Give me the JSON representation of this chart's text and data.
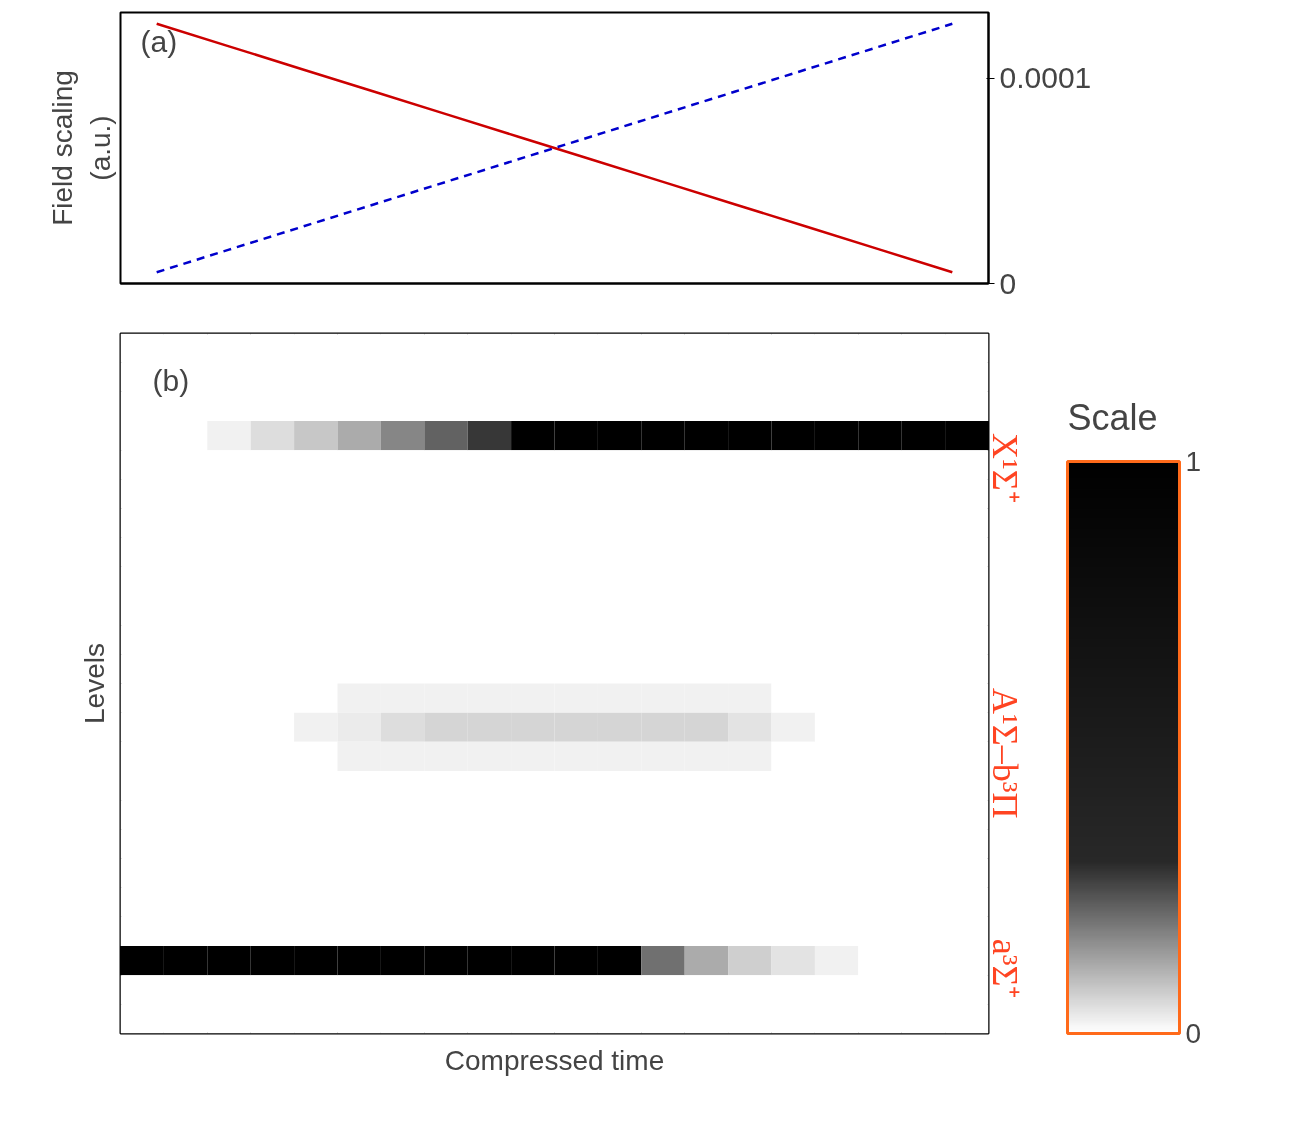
{
  "chart_data": [
    {
      "type": "line",
      "categories": [
        null,
        null,
        null,
        null,
        null,
        null,
        null,
        null,
        null,
        null,
        null,
        null
      ],
      "ylim": [
        0,
        0.000132
      ],
      "yticks": [
        0,
        0.0001
      ],
      "ylabel": "Field scaling\n(a.u.)",
      "tick_labels": "y",
      "annotations": [
        "(a)"
      ],
      "series": [
        {
          "color": "#cc0000",
          "values": [
            0.0001265,
            0.0001155,
            0.0001045,
            9.35e-05,
            8.25e-05,
            7.15e-05,
            6.05e-05,
            4.95e-05,
            3.85e-05,
            2.75e-05,
            1.65e-05,
            5.5e-06
          ],
          "line_style": "solid"
        },
        {
          "color": "#0000cc",
          "values": [
            5.5e-06,
            1.65e-05,
            2.75e-05,
            3.85e-05,
            4.95e-05,
            6.05e-05,
            7.15e-05,
            8.25e-05,
            9.35e-05,
            0.0001045,
            0.0001155,
            0.0001265
          ],
          "line_style": "dashed"
        }
      ]
    },
    {
      "type": "heatmap",
      "xlabel": "Compressed time",
      "ylabel": "Levels",
      "tick_labels": false,
      "clabel": "Scale",
      "clim": [
        0,
        1
      ],
      "cticks": [
        0,
        1
      ],
      "categories": [
        null,
        null,
        null,
        null,
        null,
        null,
        null,
        null,
        null,
        null,
        null,
        null,
        null,
        null,
        null,
        null,
        null,
        null,
        null,
        null
      ],
      "y_categories": [
        null,
        null,
        null,
        null,
        null,
        null,
        null,
        null,
        null,
        null,
        null,
        null,
        null,
        null,
        null,
        null,
        null,
        null,
        null,
        null,
        null,
        null,
        null,
        null
      ],
      "annotations": [
        "(b)",
        "X¹Σ⁺",
        "A¹Σ–b³Π",
        "a³Σ⁺"
      ],
      "cells": [
        [
          0,
          0,
          0,
          0,
          0,
          0,
          0,
          0,
          0,
          0,
          0,
          0,
          0,
          0,
          0,
          0,
          0,
          0,
          0,
          0
        ],
        [
          0,
          0,
          0,
          0,
          0,
          0,
          0,
          0,
          0,
          0,
          0,
          0,
          0,
          0,
          0,
          0,
          0,
          0,
          0,
          0
        ],
        [
          0,
          0,
          0,
          0,
          0,
          0,
          0,
          0,
          0,
          0,
          0,
          0,
          0,
          0,
          0,
          0,
          0,
          0,
          0,
          0
        ],
        [
          0,
          0,
          0.02,
          0.05,
          0.08,
          0.12,
          0.17,
          0.22,
          0.28,
          1,
          1,
          1,
          1,
          1,
          1,
          1,
          1,
          1,
          1,
          1
        ],
        [
          0,
          0,
          0,
          0,
          0,
          0,
          0,
          0,
          0,
          0,
          0,
          0,
          0,
          0,
          0,
          0,
          0,
          0,
          0,
          0
        ],
        [
          0,
          0,
          0,
          0,
          0,
          0,
          0,
          0,
          0,
          0,
          0,
          0,
          0,
          0,
          0,
          0,
          0,
          0,
          0,
          0
        ],
        [
          0,
          0,
          0,
          0,
          0,
          0,
          0,
          0,
          0,
          0,
          0,
          0,
          0,
          0,
          0,
          0,
          0,
          0,
          0,
          0
        ],
        [
          0,
          0,
          0,
          0,
          0,
          0,
          0,
          0,
          0,
          0,
          0,
          0,
          0,
          0,
          0,
          0,
          0,
          0,
          0,
          0
        ],
        [
          0,
          0,
          0,
          0,
          0,
          0,
          0,
          0,
          0,
          0,
          0,
          0,
          0,
          0,
          0,
          0,
          0,
          0,
          0,
          0
        ],
        [
          0,
          0,
          0,
          0,
          0,
          0,
          0,
          0,
          0,
          0,
          0,
          0,
          0,
          0,
          0,
          0,
          0,
          0,
          0,
          0
        ],
        [
          0,
          0,
          0,
          0,
          0,
          0,
          0,
          0,
          0,
          0,
          0,
          0,
          0,
          0,
          0,
          0,
          0,
          0,
          0,
          0
        ],
        [
          0,
          0,
          0,
          0,
          0,
          0,
          0,
          0,
          0,
          0,
          0,
          0,
          0,
          0,
          0,
          0,
          0,
          0,
          0,
          0
        ],
        [
          0,
          0,
          0,
          0,
          0,
          0.02,
          0.02,
          0.02,
          0.02,
          0.02,
          0.02,
          0.02,
          0.02,
          0.02,
          0.02,
          0,
          0,
          0,
          0,
          0
        ],
        [
          0,
          0,
          0,
          0,
          0.02,
          0.03,
          0.05,
          0.06,
          0.06,
          0.06,
          0.06,
          0.06,
          0.06,
          0.06,
          0.04,
          0.02,
          0,
          0,
          0,
          0
        ],
        [
          0,
          0,
          0,
          0,
          0,
          0.02,
          0.02,
          0.02,
          0.02,
          0.02,
          0.02,
          0.02,
          0.02,
          0.02,
          0.02,
          0,
          0,
          0,
          0,
          0
        ],
        [
          0,
          0,
          0,
          0,
          0,
          0,
          0,
          0,
          0,
          0,
          0,
          0,
          0,
          0,
          0,
          0,
          0,
          0,
          0,
          0
        ],
        [
          0,
          0,
          0,
          0,
          0,
          0,
          0,
          0,
          0,
          0,
          0,
          0,
          0,
          0,
          0,
          0,
          0,
          0,
          0,
          0
        ],
        [
          0,
          0,
          0,
          0,
          0,
          0,
          0,
          0,
          0,
          0,
          0,
          0,
          0,
          0,
          0,
          0,
          0,
          0,
          0,
          0
        ],
        [
          0,
          0,
          0,
          0,
          0,
          0,
          0,
          0,
          0,
          0,
          0,
          0,
          0,
          0,
          0,
          0,
          0,
          0,
          0,
          0
        ],
        [
          0,
          0,
          0,
          0,
          0,
          0,
          0,
          0,
          0,
          0,
          0,
          0,
          0,
          0,
          0,
          0,
          0,
          0,
          0,
          0
        ],
        [
          0,
          0,
          0,
          0,
          0,
          0,
          0,
          0,
          0,
          0,
          0,
          0,
          0,
          0,
          0,
          0,
          0,
          0,
          0,
          0
        ],
        [
          1,
          1,
          1,
          1,
          1,
          1,
          1,
          1,
          1,
          1,
          1,
          1,
          0.2,
          0.12,
          0.07,
          0.04,
          0.02,
          0,
          0,
          0
        ],
        [
          0,
          0,
          0,
          0,
          0,
          0,
          0,
          0,
          0,
          0,
          0,
          0,
          0,
          0,
          0,
          0,
          0,
          0,
          0,
          0
        ],
        [
          0,
          0,
          0,
          0,
          0,
          0,
          0,
          0,
          0,
          0,
          0,
          0,
          0,
          0,
          0,
          0,
          0,
          0,
          0,
          0
        ]
      ]
    }
  ]
}
